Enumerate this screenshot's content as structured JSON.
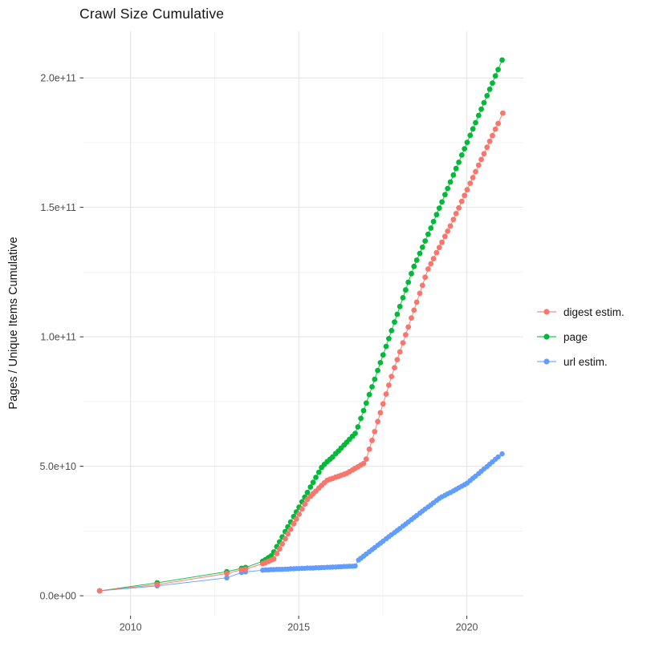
{
  "chart_data": {
    "type": "scatter",
    "title": "Crawl Size Cumulative",
    "xlabel": "",
    "ylabel": "Pages / Unique Items Cumulative",
    "values_unit": "pages (stored as billions, 1 = 1e9)",
    "grid": true,
    "legend_position": "right",
    "background": "#ffffff",
    "grid_major_color": "#e4e4e4",
    "grid_minor_color": "#efefef",
    "tick_color": "#333333",
    "x_axis": {
      "range": [
        2008.6,
        2021.68
      ],
      "major_ticks": [
        {
          "value": 2010,
          "label": "2010"
        },
        {
          "value": 2015,
          "label": "2015"
        },
        {
          "value": 2020,
          "label": "2020"
        }
      ],
      "minor_ticks": [
        2012.5,
        2017.5
      ]
    },
    "y_axis": {
      "range": [
        -7.7,
        218
      ],
      "major_ticks": [
        {
          "value": 0,
          "label": "0.0e+00"
        },
        {
          "value": 50,
          "label": "5.0e+10"
        },
        {
          "value": 100,
          "label": "1.0e+11"
        },
        {
          "value": 150,
          "label": "1.5e+11"
        },
        {
          "value": 200,
          "label": "2.0e+11"
        }
      ],
      "minor_ticks": [
        25,
        75,
        125,
        175
      ]
    },
    "series": [
      {
        "name": "page",
        "color": "#00BA38",
        "point_radius": 3.4,
        "points": [
          [
            2009.08,
            1.9
          ],
          [
            2010.79,
            5.0
          ],
          [
            2012.86,
            9.3
          ],
          [
            2013.3,
            10.6
          ],
          [
            2013.42,
            10.9
          ],
          [
            2013.93,
            13.3
          ],
          [
            2014.01,
            13.9
          ],
          [
            2014.1,
            14.7
          ],
          [
            2014.18,
            15.4
          ],
          [
            2014.26,
            16.9
          ],
          [
            2014.35,
            19.0
          ],
          [
            2014.43,
            20.8
          ],
          [
            2014.51,
            22.7
          ],
          [
            2014.6,
            24.8
          ],
          [
            2014.68,
            26.6
          ],
          [
            2014.76,
            28.5
          ],
          [
            2014.85,
            30.6
          ],
          [
            2014.93,
            32.4
          ],
          [
            2015.01,
            34.2
          ],
          [
            2015.1,
            36.3
          ],
          [
            2015.18,
            38.1
          ],
          [
            2015.26,
            39.9
          ],
          [
            2015.35,
            42.0
          ],
          [
            2015.43,
            43.8
          ],
          [
            2015.51,
            45.7
          ],
          [
            2015.6,
            47.7
          ],
          [
            2015.68,
            49.5
          ],
          [
            2015.76,
            50.7
          ],
          [
            2015.85,
            51.8
          ],
          [
            2015.93,
            52.7
          ],
          [
            2016.01,
            53.6
          ],
          [
            2016.1,
            54.9
          ],
          [
            2016.18,
            55.9
          ],
          [
            2016.26,
            57.0
          ],
          [
            2016.35,
            58.2
          ],
          [
            2016.43,
            59.3
          ],
          [
            2016.51,
            60.4
          ],
          [
            2016.6,
            61.6
          ],
          [
            2016.68,
            62.7
          ],
          [
            2016.76,
            65.2
          ],
          [
            2016.85,
            68.5
          ],
          [
            2016.93,
            71.5
          ],
          [
            2017.01,
            74.4
          ],
          [
            2017.1,
            77.7
          ],
          [
            2017.18,
            80.7
          ],
          [
            2017.26,
            83.6
          ],
          [
            2017.35,
            87.0
          ],
          [
            2017.43,
            90.0
          ],
          [
            2017.51,
            93.0
          ],
          [
            2017.6,
            96.3
          ],
          [
            2017.68,
            99.3
          ],
          [
            2017.76,
            102.4
          ],
          [
            2017.85,
            105.7
          ],
          [
            2017.93,
            108.7
          ],
          [
            2018.01,
            111.7
          ],
          [
            2018.1,
            115.1
          ],
          [
            2018.18,
            118.1
          ],
          [
            2018.26,
            121.1
          ],
          [
            2018.35,
            124.4
          ],
          [
            2018.43,
            127.2
          ],
          [
            2018.51,
            129.6
          ],
          [
            2018.6,
            132.2
          ],
          [
            2018.68,
            134.6
          ],
          [
            2018.76,
            137.0
          ],
          [
            2018.85,
            139.6
          ],
          [
            2018.93,
            142.0
          ],
          [
            2019.01,
            144.5
          ],
          [
            2019.1,
            147.2
          ],
          [
            2019.18,
            149.7
          ],
          [
            2019.26,
            152.1
          ],
          [
            2019.35,
            154.9
          ],
          [
            2019.43,
            157.3
          ],
          [
            2019.51,
            159.8
          ],
          [
            2019.6,
            162.5
          ],
          [
            2019.68,
            165.0
          ],
          [
            2019.76,
            167.4
          ],
          [
            2019.85,
            170.2
          ],
          [
            2019.93,
            172.6
          ],
          [
            2020.01,
            175.1
          ],
          [
            2020.1,
            177.8
          ],
          [
            2020.18,
            180.3
          ],
          [
            2020.26,
            182.7
          ],
          [
            2020.35,
            185.5
          ],
          [
            2020.43,
            187.9
          ],
          [
            2020.51,
            190.4
          ],
          [
            2020.6,
            193.1
          ],
          [
            2020.68,
            195.6
          ],
          [
            2020.76,
            198.0
          ],
          [
            2020.85,
            200.8
          ],
          [
            2020.93,
            203.2
          ],
          [
            2021.05,
            206.9
          ]
        ]
      },
      {
        "name": "url estim.",
        "color": "#619CFF",
        "point_radius": 3.2,
        "points": [
          [
            2009.08,
            1.9
          ],
          [
            2010.79,
            3.8
          ],
          [
            2012.86,
            6.9
          ],
          [
            2013.3,
            9.0
          ],
          [
            2013.42,
            9.2
          ],
          [
            2013.93,
            9.9
          ],
          [
            2014.01,
            10.0
          ],
          [
            2014.1,
            10.0
          ],
          [
            2014.18,
            10.1
          ],
          [
            2014.26,
            10.1
          ],
          [
            2014.35,
            10.2
          ],
          [
            2014.43,
            10.2
          ],
          [
            2014.51,
            10.2
          ],
          [
            2014.6,
            10.3
          ],
          [
            2014.68,
            10.3
          ],
          [
            2014.76,
            10.4
          ],
          [
            2014.85,
            10.4
          ],
          [
            2014.93,
            10.5
          ],
          [
            2015.01,
            10.5
          ],
          [
            2015.1,
            10.6
          ],
          [
            2015.18,
            10.6
          ],
          [
            2015.26,
            10.7
          ],
          [
            2015.35,
            10.7
          ],
          [
            2015.43,
            10.7
          ],
          [
            2015.51,
            10.8
          ],
          [
            2015.6,
            10.8
          ],
          [
            2015.68,
            10.9
          ],
          [
            2015.76,
            10.9
          ],
          [
            2015.85,
            11.0
          ],
          [
            2015.93,
            11.0
          ],
          [
            2016.01,
            11.1
          ],
          [
            2016.1,
            11.1
          ],
          [
            2016.18,
            11.2
          ],
          [
            2016.26,
            11.2
          ],
          [
            2016.35,
            11.3
          ],
          [
            2016.43,
            11.3
          ],
          [
            2016.51,
            11.4
          ],
          [
            2016.6,
            11.4
          ],
          [
            2016.68,
            11.5
          ],
          [
            2016.78,
            13.8
          ],
          [
            2016.85,
            14.5
          ],
          [
            2016.93,
            15.3
          ],
          [
            2017.01,
            16.1
          ],
          [
            2017.1,
            17.0
          ],
          [
            2017.18,
            17.8
          ],
          [
            2017.26,
            18.6
          ],
          [
            2017.35,
            19.5
          ],
          [
            2017.43,
            20.3
          ],
          [
            2017.51,
            21.1
          ],
          [
            2017.6,
            22.0
          ],
          [
            2017.68,
            22.8
          ],
          [
            2017.76,
            23.6
          ],
          [
            2017.85,
            24.4
          ],
          [
            2017.93,
            25.2
          ],
          [
            2018.01,
            26.0
          ],
          [
            2018.1,
            26.9
          ],
          [
            2018.18,
            27.7
          ],
          [
            2018.26,
            28.5
          ],
          [
            2018.35,
            29.4
          ],
          [
            2018.43,
            30.2
          ],
          [
            2018.51,
            31.0
          ],
          [
            2018.6,
            31.9
          ],
          [
            2018.68,
            32.7
          ],
          [
            2018.76,
            33.5
          ],
          [
            2018.85,
            34.3
          ],
          [
            2018.93,
            35.1
          ],
          [
            2019.01,
            35.9
          ],
          [
            2019.1,
            36.8
          ],
          [
            2019.18,
            37.6
          ],
          [
            2019.26,
            38.2
          ],
          [
            2019.35,
            38.8
          ],
          [
            2019.43,
            39.4
          ],
          [
            2019.51,
            39.9
          ],
          [
            2019.6,
            40.5
          ],
          [
            2019.68,
            41.1
          ],
          [
            2019.76,
            41.7
          ],
          [
            2019.85,
            42.3
          ],
          [
            2019.93,
            42.9
          ],
          [
            2020.01,
            43.5
          ],
          [
            2020.1,
            44.5
          ],
          [
            2020.18,
            45.4
          ],
          [
            2020.26,
            46.2
          ],
          [
            2020.35,
            47.2
          ],
          [
            2020.43,
            48.1
          ],
          [
            2020.51,
            49.0
          ],
          [
            2020.6,
            49.9
          ],
          [
            2020.68,
            50.8
          ],
          [
            2020.76,
            51.7
          ],
          [
            2020.85,
            52.7
          ],
          [
            2020.93,
            53.6
          ],
          [
            2021.05,
            54.8
          ]
        ]
      },
      {
        "name": "digest estim.",
        "color": "#F8766D",
        "point_radius": 3.4,
        "points": [
          [
            2009.08,
            1.9
          ],
          [
            2010.79,
            4.3
          ],
          [
            2012.86,
            8.6
          ],
          [
            2013.3,
            10.0
          ],
          [
            2013.42,
            10.3
          ],
          [
            2013.93,
            12.4
          ],
          [
            2014.01,
            12.8
          ],
          [
            2014.1,
            13.3
          ],
          [
            2014.18,
            13.8
          ],
          [
            2014.26,
            14.2
          ],
          [
            2014.35,
            16.3
          ],
          [
            2014.43,
            18.1
          ],
          [
            2014.51,
            20.0
          ],
          [
            2014.6,
            22.0
          ],
          [
            2014.68,
            23.9
          ],
          [
            2014.76,
            25.7
          ],
          [
            2014.85,
            27.8
          ],
          [
            2014.93,
            29.6
          ],
          [
            2015.01,
            31.5
          ],
          [
            2015.1,
            33.5
          ],
          [
            2015.18,
            35.4
          ],
          [
            2015.26,
            37.2
          ],
          [
            2015.35,
            38.4
          ],
          [
            2015.43,
            39.4
          ],
          [
            2015.51,
            40.4
          ],
          [
            2015.6,
            41.6
          ],
          [
            2015.68,
            42.6
          ],
          [
            2015.76,
            43.6
          ],
          [
            2015.85,
            44.6
          ],
          [
            2015.93,
            45.0
          ],
          [
            2016.01,
            45.3
          ],
          [
            2016.1,
            45.8
          ],
          [
            2016.18,
            46.1
          ],
          [
            2016.26,
            46.5
          ],
          [
            2016.35,
            46.9
          ],
          [
            2016.43,
            47.3
          ],
          [
            2016.51,
            47.9
          ],
          [
            2016.6,
            48.6
          ],
          [
            2016.68,
            49.2
          ],
          [
            2016.76,
            49.8
          ],
          [
            2016.85,
            50.5
          ],
          [
            2016.93,
            51.1
          ],
          [
            2017.01,
            52.8
          ],
          [
            2017.1,
            56.6
          ],
          [
            2017.18,
            60.0
          ],
          [
            2017.26,
            63.4
          ],
          [
            2017.35,
            67.3
          ],
          [
            2017.43,
            70.7
          ],
          [
            2017.51,
            74.1
          ],
          [
            2017.6,
            77.9
          ],
          [
            2017.68,
            81.3
          ],
          [
            2017.76,
            84.7
          ],
          [
            2017.85,
            88.1
          ],
          [
            2017.93,
            91.2
          ],
          [
            2018.01,
            94.2
          ],
          [
            2018.1,
            97.7
          ],
          [
            2018.18,
            100.8
          ],
          [
            2018.26,
            103.8
          ],
          [
            2018.35,
            107.3
          ],
          [
            2018.43,
            110.3
          ],
          [
            2018.51,
            113.4
          ],
          [
            2018.6,
            116.8
          ],
          [
            2018.68,
            119.9
          ],
          [
            2018.76,
            123.0
          ],
          [
            2018.85,
            126.2
          ],
          [
            2018.93,
            128.2
          ],
          [
            2019.01,
            130.2
          ],
          [
            2019.1,
            132.5
          ],
          [
            2019.18,
            134.5
          ],
          [
            2019.26,
            136.5
          ],
          [
            2019.35,
            138.8
          ],
          [
            2019.43,
            140.8
          ],
          [
            2019.51,
            142.8
          ],
          [
            2019.6,
            145.3
          ],
          [
            2019.68,
            147.6
          ],
          [
            2019.76,
            149.8
          ],
          [
            2019.85,
            152.3
          ],
          [
            2019.93,
            154.6
          ],
          [
            2020.01,
            156.8
          ],
          [
            2020.1,
            159.3
          ],
          [
            2020.18,
            161.5
          ],
          [
            2020.26,
            163.8
          ],
          [
            2020.35,
            166.3
          ],
          [
            2020.43,
            168.5
          ],
          [
            2020.51,
            170.7
          ],
          [
            2020.6,
            173.2
          ],
          [
            2020.68,
            175.5
          ],
          [
            2020.76,
            177.7
          ],
          [
            2020.85,
            180.2
          ],
          [
            2020.93,
            182.4
          ],
          [
            2021.07,
            186.4
          ]
        ]
      }
    ],
    "legend_order": [
      "digest estim.",
      "page",
      "url estim."
    ]
  }
}
